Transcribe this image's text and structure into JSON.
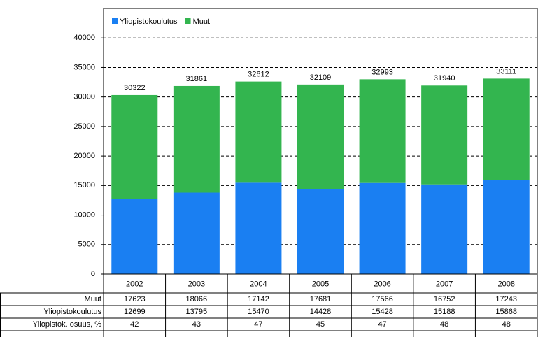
{
  "chart_data": {
    "type": "stacked-bar",
    "categories": [
      "2002",
      "2003",
      "2004",
      "2005",
      "2006",
      "2007",
      "2008"
    ],
    "series": [
      {
        "name": "Yliopistokoulutus",
        "color": "#1a7ff2",
        "values": [
          12699,
          13795,
          15470,
          14428,
          15428,
          15188,
          15868
        ]
      },
      {
        "name": "Muut",
        "color": "#33b54f",
        "values": [
          17623,
          18066,
          17142,
          17681,
          17566,
          16752,
          17243
        ]
      }
    ],
    "totals": [
      30322,
      31861,
      32612,
      32109,
      32993,
      31940,
      33111
    ],
    "share": {
      "name": "Yliopistok. osuus, %",
      "values": [
        42,
        43,
        47,
        45,
        47,
        48,
        48
      ]
    },
    "ylim": [
      0,
      45000
    ],
    "yticks": [
      0,
      5000,
      10000,
      15000,
      20000,
      25000,
      30000,
      35000,
      40000
    ],
    "grid": true,
    "legend": "top-left"
  }
}
